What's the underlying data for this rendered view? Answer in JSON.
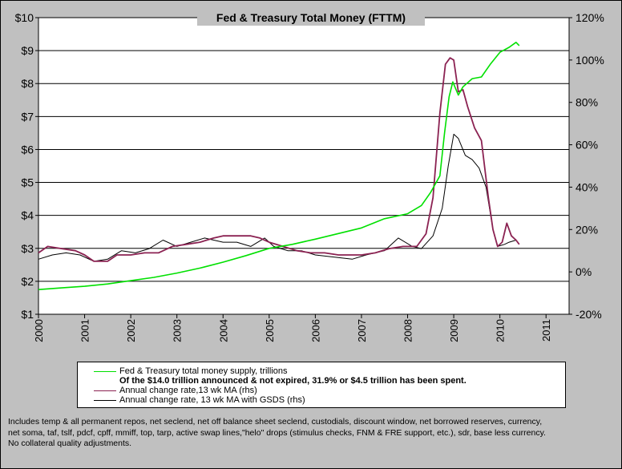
{
  "chart_data": {
    "type": "line",
    "title": "Fed & Treasury Total Money (FTTM)",
    "x_ticks": [
      "2000",
      "2001",
      "2002",
      "2003",
      "2004",
      "2005",
      "2006",
      "2007",
      "2008",
      "2009",
      "2010",
      "2011"
    ],
    "xlim": [
      2000,
      2011.5
    ],
    "y_left": {
      "ticks": [
        "$1",
        "$2",
        "$3",
        "$4",
        "$5",
        "$6",
        "$7",
        "$8",
        "$9",
        "$10"
      ],
      "lim": [
        1,
        10
      ],
      "unit": "trillions $"
    },
    "y_right": {
      "ticks": [
        "-20%",
        "0%",
        "20%",
        "40%",
        "60%",
        "80%",
        "100%",
        "120%"
      ],
      "lim": [
        -20,
        120
      ],
      "unit": "%"
    },
    "grid": "horizontal",
    "series": [
      {
        "name": "Fed & Treasury total money supply, trillions",
        "axis": "left",
        "color": "#00e000",
        "points": [
          [
            2000.0,
            1.75
          ],
          [
            2000.5,
            1.8
          ],
          [
            2001.0,
            1.85
          ],
          [
            2001.5,
            1.92
          ],
          [
            2002.0,
            2.02
          ],
          [
            2002.5,
            2.12
          ],
          [
            2003.0,
            2.25
          ],
          [
            2003.5,
            2.4
          ],
          [
            2004.0,
            2.58
          ],
          [
            2004.5,
            2.78
          ],
          [
            2005.0,
            3.0
          ],
          [
            2005.5,
            3.12
          ],
          [
            2006.0,
            3.28
          ],
          [
            2006.5,
            3.45
          ],
          [
            2007.0,
            3.62
          ],
          [
            2007.5,
            3.9
          ],
          [
            2008.0,
            4.05
          ],
          [
            2008.3,
            4.3
          ],
          [
            2008.5,
            4.7
          ],
          [
            2008.7,
            5.2
          ],
          [
            2008.8,
            6.5
          ],
          [
            2008.9,
            7.6
          ],
          [
            2008.98,
            8.05
          ],
          [
            2009.1,
            7.65
          ],
          [
            2009.2,
            7.9
          ],
          [
            2009.4,
            8.15
          ],
          [
            2009.6,
            8.2
          ],
          [
            2009.8,
            8.6
          ],
          [
            2010.0,
            8.95
          ],
          [
            2010.2,
            9.1
          ],
          [
            2010.35,
            9.25
          ],
          [
            2010.42,
            9.15
          ]
        ]
      },
      {
        "name": "Annual change rate,13 wk MA (rhs)",
        "axis": "right",
        "color": "#8b2252",
        "points": [
          [
            2000.0,
            9.0
          ],
          [
            2000.2,
            12.0
          ],
          [
            2000.5,
            11.0
          ],
          [
            2000.8,
            10.0
          ],
          [
            2001.0,
            8.0
          ],
          [
            2001.2,
            5.0
          ],
          [
            2001.5,
            5.0
          ],
          [
            2001.7,
            8.0
          ],
          [
            2002.0,
            8.0
          ],
          [
            2002.3,
            9.0
          ],
          [
            2002.6,
            9.0
          ],
          [
            2002.9,
            12.0
          ],
          [
            2003.2,
            13.0
          ],
          [
            2003.5,
            14.0
          ],
          [
            2003.8,
            16.0
          ],
          [
            2004.0,
            17.0
          ],
          [
            2004.3,
            17.0
          ],
          [
            2004.6,
            17.0
          ],
          [
            2004.8,
            16.0
          ],
          [
            2005.0,
            14.0
          ],
          [
            2005.3,
            12.0
          ],
          [
            2005.6,
            10.0
          ],
          [
            2005.9,
            9.0
          ],
          [
            2006.2,
            9.0
          ],
          [
            2006.5,
            8.0
          ],
          [
            2006.8,
            8.0
          ],
          [
            2007.0,
            8.0
          ],
          [
            2007.3,
            9.0
          ],
          [
            2007.6,
            11.0
          ],
          [
            2007.9,
            12.0
          ],
          [
            2008.2,
            12.0
          ],
          [
            2008.4,
            18.0
          ],
          [
            2008.55,
            35.0
          ],
          [
            2008.7,
            75.0
          ],
          [
            2008.82,
            98.0
          ],
          [
            2008.92,
            101.0
          ],
          [
            2009.0,
            100.0
          ],
          [
            2009.1,
            85.0
          ],
          [
            2009.2,
            86.0
          ],
          [
            2009.3,
            78.0
          ],
          [
            2009.45,
            68.0
          ],
          [
            2009.6,
            62.0
          ],
          [
            2009.75,
            35.0
          ],
          [
            2009.85,
            20.0
          ],
          [
            2009.95,
            12.0
          ],
          [
            2010.05,
            14.0
          ],
          [
            2010.15,
            23.0
          ],
          [
            2010.25,
            17.0
          ],
          [
            2010.35,
            15.0
          ],
          [
            2010.42,
            13.0
          ]
        ]
      },
      {
        "name": "Annual change rate, 13 wk MA with GSDS (rhs)",
        "axis": "right",
        "color": "#000000",
        "points": [
          [
            2000.0,
            6.0
          ],
          [
            2000.3,
            8.0
          ],
          [
            2000.6,
            9.0
          ],
          [
            2000.9,
            8.0
          ],
          [
            2001.2,
            5.0
          ],
          [
            2001.5,
            6.0
          ],
          [
            2001.8,
            10.0
          ],
          [
            2002.1,
            9.0
          ],
          [
            2002.4,
            11.0
          ],
          [
            2002.7,
            15.0
          ],
          [
            2003.0,
            12.0
          ],
          [
            2003.3,
            14.0
          ],
          [
            2003.6,
            16.0
          ],
          [
            2004.0,
            14.0
          ],
          [
            2004.3,
            14.0
          ],
          [
            2004.6,
            12.0
          ],
          [
            2004.9,
            16.0
          ],
          [
            2005.1,
            12.0
          ],
          [
            2005.4,
            10.0
          ],
          [
            2005.7,
            10.0
          ],
          [
            2006.0,
            8.0
          ],
          [
            2006.4,
            7.0
          ],
          [
            2006.8,
            6.0
          ],
          [
            2007.1,
            8.0
          ],
          [
            2007.5,
            10.0
          ],
          [
            2007.8,
            16.0
          ],
          [
            2008.1,
            12.0
          ],
          [
            2008.3,
            11.0
          ],
          [
            2008.55,
            17.0
          ],
          [
            2008.75,
            30.0
          ],
          [
            2008.88,
            50.0
          ],
          [
            2009.0,
            65.0
          ],
          [
            2009.1,
            63.0
          ],
          [
            2009.25,
            55.0
          ],
          [
            2009.4,
            53.0
          ],
          [
            2009.55,
            49.0
          ],
          [
            2009.7,
            40.0
          ],
          [
            2009.85,
            20.0
          ],
          [
            2009.95,
            12.0
          ],
          [
            2010.1,
            13.0
          ],
          [
            2010.2,
            14.0
          ],
          [
            2010.35,
            15.0
          ]
        ]
      }
    ]
  },
  "legend": {
    "note": "Of the $14.0 trillion announced & not expired, 31.9% or $4.5 trillion has been spent."
  },
  "footnote": [
    "Includes temp & all permanent repos, net seclend, net off balance sheet seclend, custodials, discount window, net borrowed reserves, currency,",
    "net soma, taf, tslf, pdcf, cpff, mmiff, top, tarp, active swap lines,\"helo\" drops (stimulus checks, FNM & FRE support, etc.), sdr, base less currency.",
    "No collateral quality adjustments."
  ]
}
